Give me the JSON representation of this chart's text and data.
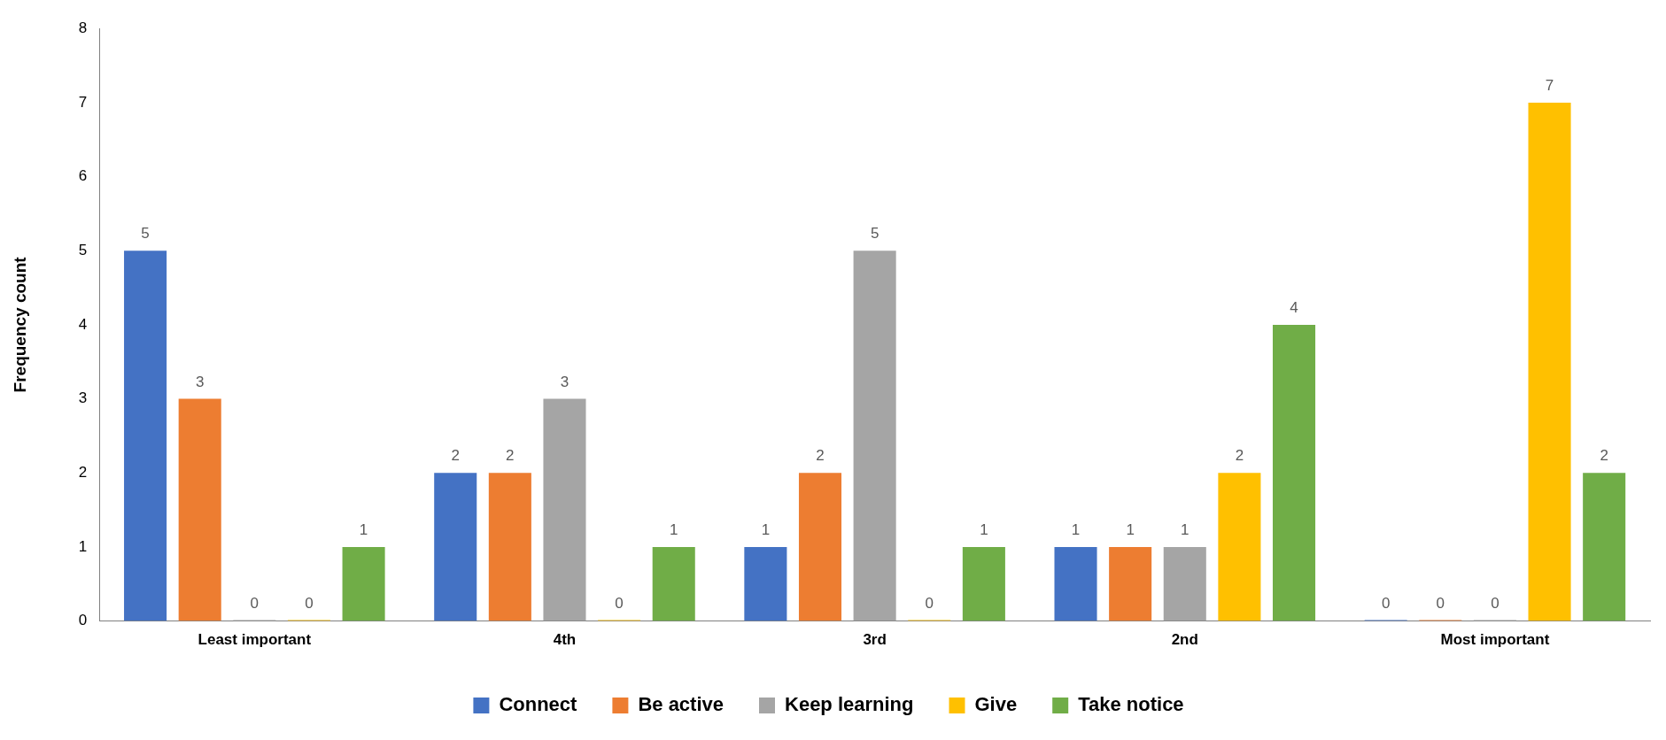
{
  "chart_data": {
    "type": "bar",
    "ylabel": "Frequency count",
    "categories": [
      "Least important",
      "4th",
      "3rd",
      "2nd",
      "Most important"
    ],
    "series": [
      {
        "name": "Connect",
        "color": "#4472c4",
        "values": [
          5,
          2,
          1,
          1,
          0
        ]
      },
      {
        "name": "Be active",
        "color": "#ed7d31",
        "values": [
          3,
          2,
          2,
          1,
          0
        ]
      },
      {
        "name": "Keep learning",
        "color": "#a5a5a5",
        "values": [
          0,
          3,
          5,
          1,
          0
        ]
      },
      {
        "name": "Give",
        "color": "#ffc000",
        "values": [
          0,
          0,
          0,
          2,
          7
        ]
      },
      {
        "name": "Take notice",
        "color": "#70ad47",
        "values": [
          1,
          1,
          1,
          4,
          2
        ]
      }
    ],
    "ylim": [
      0,
      8
    ],
    "yticks": [
      0,
      1,
      2,
      3,
      4,
      5,
      6,
      7,
      8
    ],
    "grid": false,
    "legend": "bottom",
    "data_labels": true
  }
}
